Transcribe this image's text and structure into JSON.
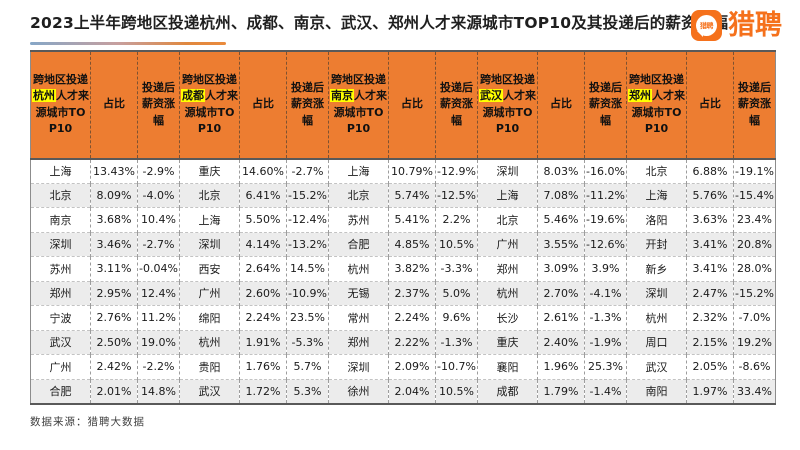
{
  "title": "2023上半年跨地区投递杭州、成都、南京、武汉、郑州人才来源城市TOP10及其投递后的薪资涨幅",
  "logo": {
    "brand": "猎聘",
    "icon_text": "猎聘"
  },
  "footer": {
    "source": "数据来源：猎聘大数据"
  },
  "colors": {
    "header_orange": "#ed7d31",
    "brand_orange": "#f5711c",
    "highlight_yellow": "#ffff00",
    "stripe_gray": "#ececec",
    "border_dark": "#595959"
  },
  "chart_data": {
    "type": "table",
    "title": "2023上半年跨地区投递杭州、成都、南京、武汉、郑州人才来源城市TOP10及其投递后的薪资涨幅",
    "columns": {
      "source_prefix": "跨地区投递",
      "source_suffix": "人才来源城市TOP10",
      "ratio": "占比",
      "change": "投递后薪资涨幅"
    },
    "groups": [
      {
        "city": "杭州",
        "rows": [
          {
            "city": "上海",
            "ratio": "13.43%",
            "change": "-2.9%"
          },
          {
            "city": "北京",
            "ratio": "8.09%",
            "change": "-4.0%"
          },
          {
            "city": "南京",
            "ratio": "3.68%",
            "change": "10.4%"
          },
          {
            "city": "深圳",
            "ratio": "3.46%",
            "change": "-2.7%"
          },
          {
            "city": "苏州",
            "ratio": "3.11%",
            "change": "-0.04%"
          },
          {
            "city": "郑州",
            "ratio": "2.95%",
            "change": "12.4%"
          },
          {
            "city": "宁波",
            "ratio": "2.76%",
            "change": "11.2%"
          },
          {
            "city": "武汉",
            "ratio": "2.50%",
            "change": "19.0%"
          },
          {
            "city": "广州",
            "ratio": "2.42%",
            "change": "-2.2%"
          },
          {
            "city": "合肥",
            "ratio": "2.01%",
            "change": "14.8%"
          }
        ]
      },
      {
        "city": "成都",
        "rows": [
          {
            "city": "重庆",
            "ratio": "14.60%",
            "change": "-2.7%"
          },
          {
            "city": "北京",
            "ratio": "6.41%",
            "change": "-15.2%"
          },
          {
            "city": "上海",
            "ratio": "5.50%",
            "change": "-12.4%"
          },
          {
            "city": "深圳",
            "ratio": "4.14%",
            "change": "-13.2%"
          },
          {
            "city": "西安",
            "ratio": "2.64%",
            "change": "14.5%"
          },
          {
            "city": "广州",
            "ratio": "2.60%",
            "change": "-10.9%"
          },
          {
            "city": "绵阳",
            "ratio": "2.24%",
            "change": "23.5%"
          },
          {
            "city": "杭州",
            "ratio": "1.91%",
            "change": "-5.3%"
          },
          {
            "city": "贵阳",
            "ratio": "1.76%",
            "change": "5.7%"
          },
          {
            "city": "武汉",
            "ratio": "1.72%",
            "change": "5.3%"
          }
        ]
      },
      {
        "city": "南京",
        "rows": [
          {
            "city": "上海",
            "ratio": "10.79%",
            "change": "-12.9%"
          },
          {
            "city": "北京",
            "ratio": "5.74%",
            "change": "-12.5%"
          },
          {
            "city": "苏州",
            "ratio": "5.41%",
            "change": "2.2%"
          },
          {
            "city": "合肥",
            "ratio": "4.85%",
            "change": "10.5%"
          },
          {
            "city": "杭州",
            "ratio": "3.82%",
            "change": "-3.3%"
          },
          {
            "city": "无锡",
            "ratio": "2.37%",
            "change": "5.0%"
          },
          {
            "city": "常州",
            "ratio": "2.24%",
            "change": "9.6%"
          },
          {
            "city": "郑州",
            "ratio": "2.22%",
            "change": "-1.3%"
          },
          {
            "city": "深圳",
            "ratio": "2.09%",
            "change": "-10.7%"
          },
          {
            "city": "徐州",
            "ratio": "2.04%",
            "change": "10.5%"
          }
        ]
      },
      {
        "city": "武汉",
        "rows": [
          {
            "city": "深圳",
            "ratio": "8.03%",
            "change": "-16.0%"
          },
          {
            "city": "上海",
            "ratio": "7.08%",
            "change": "-11.2%"
          },
          {
            "city": "北京",
            "ratio": "5.46%",
            "change": "-19.6%"
          },
          {
            "city": "广州",
            "ratio": "3.55%",
            "change": "-12.6%"
          },
          {
            "city": "郑州",
            "ratio": "3.09%",
            "change": "3.9%"
          },
          {
            "city": "杭州",
            "ratio": "2.70%",
            "change": "-4.1%"
          },
          {
            "city": "长沙",
            "ratio": "2.61%",
            "change": "-1.3%"
          },
          {
            "city": "重庆",
            "ratio": "2.40%",
            "change": "-1.9%"
          },
          {
            "city": "襄阳",
            "ratio": "1.96%",
            "change": "25.3%"
          },
          {
            "city": "成都",
            "ratio": "1.79%",
            "change": "-1.4%"
          }
        ]
      },
      {
        "city": "郑州",
        "rows": [
          {
            "city": "北京",
            "ratio": "6.88%",
            "change": "-19.1%"
          },
          {
            "city": "上海",
            "ratio": "5.76%",
            "change": "-15.4%"
          },
          {
            "city": "洛阳",
            "ratio": "3.63%",
            "change": "23.4%"
          },
          {
            "city": "开封",
            "ratio": "3.41%",
            "change": "20.8%"
          },
          {
            "city": "新乡",
            "ratio": "3.41%",
            "change": "28.0%"
          },
          {
            "city": "深圳",
            "ratio": "2.47%",
            "change": "-15.2%"
          },
          {
            "city": "杭州",
            "ratio": "2.32%",
            "change": "-7.0%"
          },
          {
            "city": "周口",
            "ratio": "2.15%",
            "change": "19.2%"
          },
          {
            "city": "武汉",
            "ratio": "2.05%",
            "change": "-8.6%"
          },
          {
            "city": "南阳",
            "ratio": "1.97%",
            "change": "33.4%"
          }
        ]
      }
    ]
  }
}
